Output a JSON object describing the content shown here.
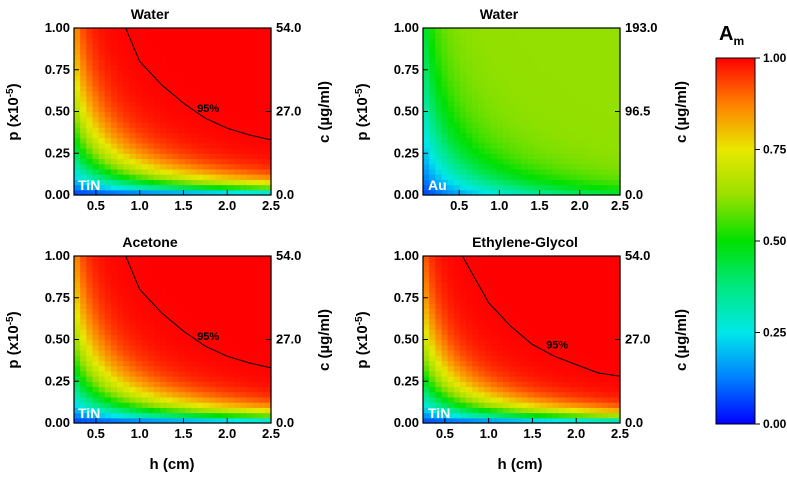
{
  "chart_data": [
    {
      "type": "heatmap",
      "title": "Water",
      "material": "TiN",
      "xlabel": "",
      "ylabel": "p (x10-5)",
      "ylabel_right": "c (µg/ml)",
      "x_ticks": [
        "0.5",
        "1.0",
        "1.5",
        "2.0",
        "2.5"
      ],
      "y_ticks": [
        "0.00",
        "0.25",
        "0.50",
        "0.75",
        "1.00"
      ],
      "y_right_ticks": [
        "0.0",
        "27.0",
        "54.0"
      ],
      "xlim": [
        0.25,
        2.5
      ],
      "ylim": [
        0,
        1
      ],
      "contour_label": "95%",
      "contour": [
        [
          0.84,
          1.0
        ],
        [
          1.0,
          0.8
        ],
        [
          1.25,
          0.66
        ],
        [
          1.5,
          0.55
        ],
        [
          1.75,
          0.46
        ],
        [
          2.0,
          0.4
        ],
        [
          2.25,
          0.36
        ],
        [
          2.5,
          0.33
        ]
      ]
    },
    {
      "type": "heatmap",
      "title": "Water",
      "material": "Au",
      "xlabel": "",
      "ylabel": "p (x10-5)",
      "ylabel_right": "c (µg/ml)",
      "x_ticks": [
        "0.5",
        "1.0",
        "1.5",
        "2.0",
        "2.5"
      ],
      "y_ticks": [
        "0.00",
        "0.25",
        "0.50",
        "0.75",
        "1.00"
      ],
      "y_right_ticks": [
        "0.0",
        "96.5",
        "193.0"
      ],
      "xlim": [
        0.05,
        2.5
      ],
      "ylim": [
        0,
        1
      ],
      "contour_label": "",
      "contour": []
    },
    {
      "type": "heatmap",
      "title": "Acetone",
      "material": "TiN",
      "xlabel": "h (cm)",
      "ylabel": "p (x10-5)",
      "ylabel_right": "c (µg/ml)",
      "x_ticks": [
        "0.5",
        "1.0",
        "1.5",
        "2.0",
        "2.5"
      ],
      "y_ticks": [
        "0.00",
        "0.25",
        "0.50",
        "0.75",
        "1.00"
      ],
      "y_right_ticks": [
        "0.0",
        "27.0",
        "54.0"
      ],
      "xlim": [
        0.25,
        2.5
      ],
      "ylim": [
        0,
        1
      ],
      "contour_label": "95%",
      "contour": [
        [
          0.84,
          1.0
        ],
        [
          1.0,
          0.8
        ],
        [
          1.25,
          0.66
        ],
        [
          1.5,
          0.55
        ],
        [
          1.75,
          0.46
        ],
        [
          2.0,
          0.4
        ],
        [
          2.25,
          0.36
        ],
        [
          2.5,
          0.33
        ]
      ]
    },
    {
      "type": "heatmap",
      "title": "Ethylene-Glycol",
      "material": "TiN",
      "xlabel": "h (cm)",
      "ylabel": "p (x10-5)",
      "ylabel_right": "c (µg/ml)",
      "x_ticks": [
        "0.5",
        "1.0",
        "1.5",
        "2.0",
        "2.5"
      ],
      "y_ticks": [
        "0.00",
        "0.25",
        "0.50",
        "0.75",
        "1.00"
      ],
      "y_right_ticks": [
        "0.0",
        "27.0",
        "54.0"
      ],
      "xlim": [
        0.25,
        2.5
      ],
      "ylim": [
        0,
        1
      ],
      "contour_label": "95%",
      "contour": [
        [
          0.7,
          1.0
        ],
        [
          1.0,
          0.72
        ],
        [
          1.25,
          0.58
        ],
        [
          1.5,
          0.47
        ],
        [
          1.75,
          0.4
        ],
        [
          2.0,
          0.35
        ],
        [
          2.25,
          0.3
        ],
        [
          2.5,
          0.28
        ]
      ]
    }
  ],
  "colorbar": {
    "title": "A",
    "title_sub": "m",
    "ticks": [
      "0.00",
      "0.25",
      "0.50",
      "0.75",
      "1.00"
    ],
    "range": [
      0,
      1
    ]
  }
}
